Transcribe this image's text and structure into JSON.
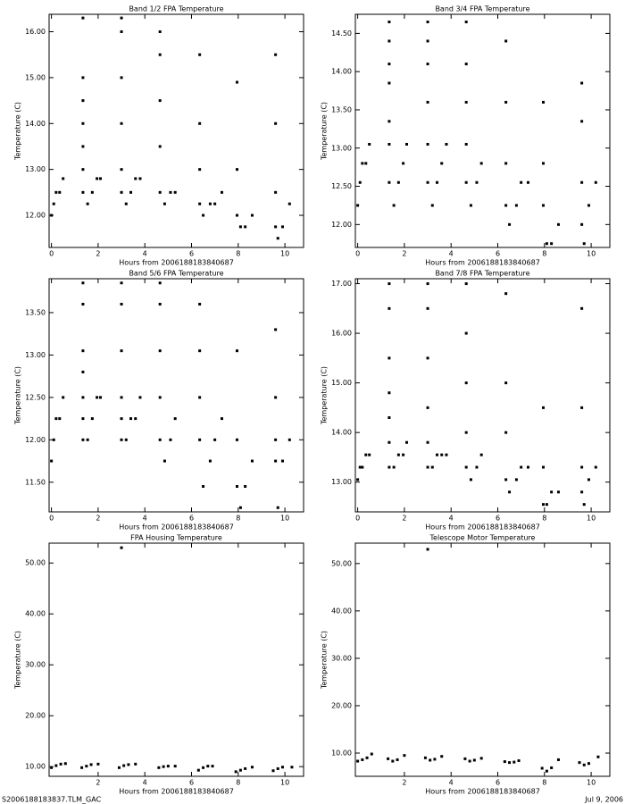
{
  "chart_data": [
    {
      "type": "scatter",
      "title": "Band 1/2 FPA Temperature",
      "x_label": "Hours from 2006188183840687",
      "y_label": "Temperature (C)",
      "color": "#000000",
      "xlim": [
        -0.1,
        10.8
      ],
      "xticks": [
        0,
        2,
        4,
        6,
        8,
        10
      ],
      "ylim": [
        11.3,
        16.38
      ],
      "yticks": [
        {
          "value": 12,
          "label": "12.00"
        },
        {
          "value": 13,
          "label": "13.00"
        },
        {
          "value": 14,
          "label": "14.00"
        },
        {
          "value": 15,
          "label": "15.00"
        },
        {
          "value": 16,
          "label": "16.00"
        }
      ],
      "x": [
        0.0,
        0.1,
        0.2,
        0.35,
        0.5,
        1.35,
        1.35,
        1.35,
        1.35,
        1.35,
        1.35,
        1.35,
        1.55,
        1.75,
        1.95,
        2.1,
        3.0,
        3.0,
        3.0,
        3.0,
        3.0,
        3.0,
        3.2,
        3.4,
        3.6,
        3.8,
        4.65,
        4.65,
        4.65,
        4.65,
        4.65,
        4.85,
        5.1,
        5.3,
        6.35,
        6.35,
        6.35,
        6.35,
        6.5,
        6.8,
        7.0,
        7.3,
        7.95,
        7.95,
        7.95,
        8.1,
        8.3,
        8.6,
        9.6,
        9.6,
        9.6,
        9.6,
        9.7,
        9.9,
        10.2
      ],
      "values": [
        12.0,
        12.25,
        12.5,
        12.5,
        12.8,
        12.5,
        13.0,
        13.5,
        14.0,
        14.5,
        15.0,
        16.3,
        12.25,
        12.5,
        12.8,
        12.8,
        12.5,
        13.0,
        14.0,
        15.0,
        16.0,
        16.3,
        12.25,
        12.5,
        12.8,
        12.8,
        12.5,
        13.5,
        14.5,
        15.5,
        16.0,
        12.25,
        12.5,
        12.5,
        12.25,
        13.0,
        14.0,
        15.5,
        12.0,
        12.25,
        12.25,
        12.5,
        12.0,
        13.0,
        14.9,
        11.75,
        11.75,
        12.0,
        11.75,
        12.5,
        14.0,
        15.5,
        11.5,
        11.75,
        12.25
      ]
    },
    {
      "type": "scatter",
      "title": "Band 3/4 FPA Temperature",
      "x_label": "Hours from 2006188183840687",
      "y_label": "Temperature (C)",
      "color": "#000000",
      "xlim": [
        -0.1,
        10.8
      ],
      "xticks": [
        0,
        2,
        4,
        6,
        8,
        10
      ],
      "ylim": [
        11.7,
        14.75
      ],
      "yticks": [
        {
          "value": 12,
          "label": "12.00"
        },
        {
          "value": 12.5,
          "label": "12.50"
        },
        {
          "value": 13,
          "label": "13.00"
        },
        {
          "value": 13.5,
          "label": "13.50"
        },
        {
          "value": 14,
          "label": "14.00"
        },
        {
          "value": 14.5,
          "label": "14.50"
        }
      ],
      "x": [
        0.0,
        0.1,
        0.2,
        0.35,
        0.5,
        1.35,
        1.35,
        1.35,
        1.35,
        1.35,
        1.35,
        1.35,
        1.55,
        1.75,
        1.95,
        2.1,
        3.0,
        3.0,
        3.0,
        3.0,
        3.0,
        3.0,
        3.2,
        3.4,
        3.6,
        3.8,
        4.65,
        4.65,
        4.65,
        4.65,
        4.65,
        4.85,
        5.1,
        5.3,
        6.35,
        6.35,
        6.35,
        6.35,
        6.5,
        6.8,
        7.0,
        7.3,
        7.95,
        7.95,
        7.95,
        8.1,
        8.3,
        8.6,
        9.6,
        9.6,
        9.6,
        9.6,
        9.7,
        9.9,
        10.2
      ],
      "values": [
        12.25,
        12.55,
        12.8,
        12.8,
        13.05,
        12.55,
        13.05,
        13.35,
        13.85,
        14.1,
        14.4,
        14.65,
        12.25,
        12.55,
        12.8,
        13.05,
        12.55,
        13.05,
        13.6,
        14.1,
        14.4,
        14.65,
        12.25,
        12.55,
        12.8,
        13.05,
        12.55,
        13.05,
        13.6,
        14.1,
        14.65,
        12.25,
        12.55,
        12.8,
        12.25,
        12.8,
        13.6,
        14.4,
        12.0,
        12.25,
        12.55,
        12.55,
        12.25,
        12.8,
        13.6,
        11.75,
        11.75,
        12.0,
        12.0,
        12.55,
        13.35,
        13.85,
        11.75,
        12.25,
        12.55
      ]
    },
    {
      "type": "scatter",
      "title": "Band 5/6 FPA Temperature",
      "x_label": "Hours from 2006188183840687",
      "y_label": "Temperature (C)",
      "color": "#000000",
      "xlim": [
        -0.1,
        10.8
      ],
      "xticks": [
        0,
        2,
        4,
        6,
        8,
        10
      ],
      "ylim": [
        11.15,
        13.9
      ],
      "yticks": [
        {
          "value": 11.5,
          "label": "11.50"
        },
        {
          "value": 12,
          "label": "12.00"
        },
        {
          "value": 12.5,
          "label": "12.50"
        },
        {
          "value": 13,
          "label": "13.00"
        },
        {
          "value": 13.5,
          "label": "13.50"
        }
      ],
      "x": [
        0.0,
        0.1,
        0.2,
        0.35,
        0.5,
        1.35,
        1.35,
        1.35,
        1.35,
        1.35,
        1.35,
        1.35,
        1.55,
        1.75,
        1.95,
        2.1,
        3.0,
        3.0,
        3.0,
        3.0,
        3.0,
        3.0,
        3.2,
        3.4,
        3.6,
        3.8,
        4.65,
        4.65,
        4.65,
        4.65,
        4.65,
        4.85,
        5.1,
        5.3,
        6.35,
        6.35,
        6.35,
        6.35,
        6.5,
        6.8,
        7.0,
        7.3,
        7.95,
        7.95,
        7.95,
        8.1,
        8.3,
        8.6,
        9.6,
        9.6,
        9.6,
        9.6,
        9.7,
        9.9,
        10.2
      ],
      "values": [
        11.75,
        12.0,
        12.25,
        12.25,
        12.5,
        12.0,
        12.25,
        12.5,
        12.8,
        13.05,
        13.6,
        13.85,
        12.0,
        12.25,
        12.5,
        12.5,
        12.0,
        12.25,
        12.5,
        13.05,
        13.6,
        13.85,
        12.0,
        12.25,
        12.25,
        12.5,
        12.0,
        12.5,
        13.05,
        13.6,
        13.85,
        11.75,
        12.0,
        12.25,
        12.0,
        12.5,
        13.05,
        13.6,
        11.45,
        11.75,
        12.0,
        12.25,
        11.45,
        12.0,
        13.05,
        11.2,
        11.45,
        11.75,
        11.75,
        12.0,
        12.5,
        13.3,
        11.2,
        11.75,
        12.0
      ]
    },
    {
      "type": "scatter",
      "title": "Band 7/8 FPA Temperature",
      "x_label": "Hours from 2006188183840687",
      "y_label": "Temperature (C)",
      "color": "#000000",
      "xlim": [
        -0.1,
        10.8
      ],
      "xticks": [
        0,
        2,
        4,
        6,
        8,
        10
      ],
      "ylim": [
        12.4,
        17.1
      ],
      "yticks": [
        {
          "value": 13,
          "label": "13.00"
        },
        {
          "value": 14,
          "label": "14.00"
        },
        {
          "value": 15,
          "label": "15.00"
        },
        {
          "value": 16,
          "label": "16.00"
        },
        {
          "value": 17,
          "label": "17.00"
        }
      ],
      "x": [
        0.0,
        0.1,
        0.2,
        0.35,
        0.5,
        1.35,
        1.35,
        1.35,
        1.35,
        1.35,
        1.35,
        1.35,
        1.55,
        1.75,
        1.95,
        2.1,
        3.0,
        3.0,
        3.0,
        3.0,
        3.0,
        3.0,
        3.2,
        3.4,
        3.6,
        3.8,
        4.65,
        4.65,
        4.65,
        4.65,
        4.65,
        4.85,
        5.1,
        5.3,
        6.35,
        6.35,
        6.35,
        6.35,
        6.5,
        6.8,
        7.0,
        7.3,
        7.95,
        7.95,
        7.95,
        8.1,
        8.3,
        8.6,
        9.6,
        9.6,
        9.6,
        9.6,
        9.7,
        9.9,
        10.2
      ],
      "values": [
        13.05,
        13.3,
        13.3,
        13.55,
        13.55,
        13.3,
        13.8,
        14.3,
        14.8,
        15.5,
        16.5,
        17.0,
        13.3,
        13.55,
        13.55,
        13.8,
        13.3,
        13.8,
        14.5,
        15.5,
        16.5,
        17.0,
        13.3,
        13.55,
        13.55,
        13.55,
        13.3,
        14.0,
        15.0,
        16.0,
        17.0,
        13.05,
        13.3,
        13.55,
        13.05,
        14.0,
        15.0,
        16.8,
        12.8,
        13.05,
        13.3,
        13.3,
        12.55,
        13.3,
        14.5,
        12.55,
        12.8,
        12.8,
        12.8,
        13.3,
        14.5,
        16.5,
        12.55,
        13.05,
        13.3
      ]
    },
    {
      "type": "scatter",
      "title": "FPA Housing Temperature",
      "x_label": "Hours from 2006188183840687",
      "y_label": "Temperature (C)",
      "color": "#000000",
      "xlim": [
        -0.1,
        10.8
      ],
      "xticks": [
        2,
        4,
        6,
        8,
        10
      ],
      "ylim": [
        8.1,
        53.9
      ],
      "yticks": [
        {
          "value": 10,
          "label": "10.00"
        },
        {
          "value": 20,
          "label": "20.00"
        },
        {
          "value": 30,
          "label": "30.00"
        },
        {
          "value": 40,
          "label": "40.00"
        },
        {
          "value": 50,
          "label": "50.00"
        }
      ],
      "x": [
        0,
        0.2,
        0.4,
        0.6,
        1.3,
        1.5,
        1.7,
        2.0,
        2.9,
        3.1,
        3.3,
        3.6,
        4.6,
        4.8,
        5.0,
        5.3,
        6.3,
        6.5,
        6.7,
        6.9,
        7.9,
        8.1,
        8.3,
        8.6,
        9.5,
        9.7,
        9.9,
        10.3,
        3.0
      ],
      "values": [
        9.8,
        10.2,
        10.5,
        10.6,
        9.8,
        10.1,
        10.4,
        10.5,
        9.8,
        10.2,
        10.4,
        10.5,
        9.8,
        10.0,
        10.1,
        10.1,
        9.3,
        9.8,
        10.1,
        10.1,
        9.0,
        9.3,
        9.6,
        9.9,
        9.2,
        9.6,
        9.9,
        9.9,
        53.0
      ]
    },
    {
      "type": "scatter",
      "title": "Telescope Motor Temperature",
      "x_label": "Hours from 2006188183840687",
      "y_label": "Temperature (C)",
      "color": "#000000",
      "xlim": [
        -0.1,
        10.8
      ],
      "xticks": [
        2,
        4,
        6,
        8,
        10
      ],
      "ylim": [
        5.1,
        54.3
      ],
      "yticks": [
        {
          "value": 10,
          "label": "10.00"
        },
        {
          "value": 20,
          "label": "20.00"
        },
        {
          "value": 30,
          "label": "30.00"
        },
        {
          "value": 40,
          "label": "40.00"
        },
        {
          "value": 50,
          "label": "50.00"
        }
      ],
      "x": [
        0,
        0.2,
        0.4,
        0.6,
        1.3,
        1.5,
        1.7,
        2.0,
        2.9,
        3.1,
        3.3,
        3.6,
        4.6,
        4.8,
        5.0,
        5.3,
        6.3,
        6.5,
        6.7,
        6.9,
        7.9,
        8.1,
        8.3,
        8.6,
        9.5,
        9.7,
        9.9,
        10.3,
        3.0
      ],
      "values": [
        8.3,
        8.6,
        9.0,
        9.8,
        8.8,
        8.3,
        8.6,
        9.5,
        9.0,
        8.5,
        8.7,
        9.3,
        8.8,
        8.3,
        8.5,
        8.9,
        8.2,
        8.0,
        8.1,
        8.4,
        6.8,
        6.2,
        6.9,
        8.6,
        8.0,
        7.5,
        7.8,
        9.2,
        53.0
      ]
    }
  ],
  "footer": {
    "left": "S2006188183837.TLM_GAC",
    "right": "Jul 9, 2006"
  }
}
